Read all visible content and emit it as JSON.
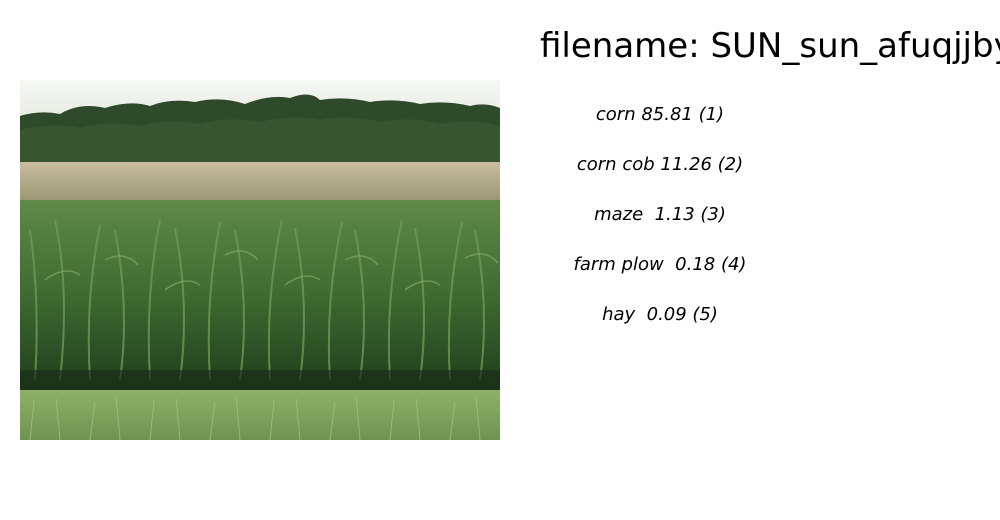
{
  "header": {
    "filename_text": "filename: SUN_sun_afuqjjbyd"
  },
  "photo": {
    "description_icon": "cornfield-photo",
    "colors": {
      "sky": "#f4f6f2",
      "trees": "#2f4a2a",
      "tassels": "#b8a98a",
      "corn": "#3f6b33",
      "grass": "#7fa35a"
    }
  },
  "predictions": [
    {
      "text": "corn 85.81 (1)"
    },
    {
      "text": "corn cob 11.26 (2)"
    },
    {
      "text": "maze  1.13 (3)"
    },
    {
      "text": "farm plow  0.18 (4)"
    },
    {
      "text": "hay  0.09 (5)"
    }
  ]
}
